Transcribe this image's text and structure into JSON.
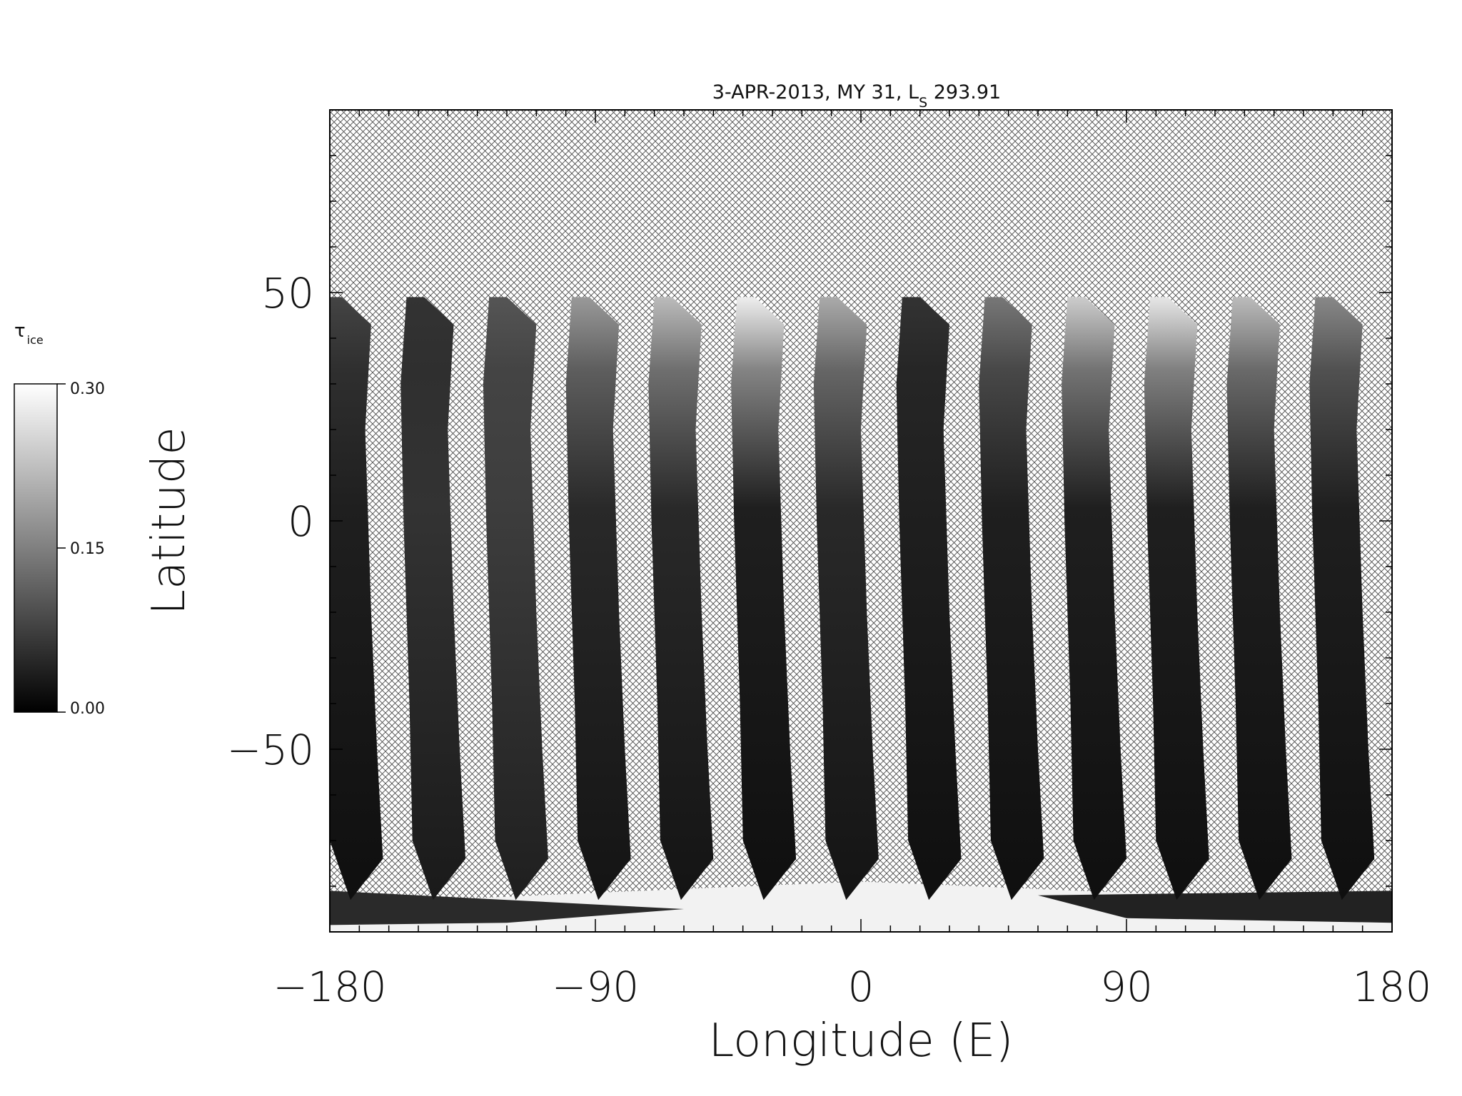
{
  "chart_data": {
    "type": "heatmap",
    "title": "3-APR-2013, MY 31,  L",
    "title_sub": "S",
    "title_suffix": " 293.91",
    "xlabel": "Longitude (E)",
    "ylabel": "Latitude",
    "xlim": [
      -180,
      180
    ],
    "ylim": [
      -90,
      90
    ],
    "xticks": [
      -180,
      -90,
      0,
      90,
      180
    ],
    "yticks": [
      -50,
      0,
      50
    ],
    "colorbar": {
      "label": "τ",
      "label_sub": "ice",
      "range": [
        0.0,
        0.3
      ],
      "ticks": [
        "0.00",
        "0.15",
        "0.30"
      ],
      "colormap": "grayscale",
      "low_color": "#000000",
      "high_color": "#ffffff"
    },
    "no_data_pattern": "crosshatch",
    "swath_count": 13,
    "swaths": [
      {
        "lon_top": -176,
        "mean_tau": 0.03,
        "top_tau": 0.08
      },
      {
        "lon_top": -148,
        "mean_tau": 0.05,
        "top_tau": 0.06
      },
      {
        "lon_top": -120,
        "mean_tau": 0.06,
        "top_tau": 0.1
      },
      {
        "lon_top": -92,
        "mean_tau": 0.04,
        "top_tau": 0.18
      },
      {
        "lon_top": -64,
        "mean_tau": 0.04,
        "top_tau": 0.22
      },
      {
        "lon_top": -36,
        "mean_tau": 0.03,
        "top_tau": 0.28
      },
      {
        "lon_top": -8,
        "mean_tau": 0.04,
        "top_tau": 0.2
      },
      {
        "lon_top": 20,
        "mean_tau": 0.03,
        "top_tau": 0.06
      },
      {
        "lon_top": 48,
        "mean_tau": 0.03,
        "top_tau": 0.14
      },
      {
        "lon_top": 76,
        "mean_tau": 0.03,
        "top_tau": 0.24
      },
      {
        "lon_top": 104,
        "mean_tau": 0.03,
        "top_tau": 0.27
      },
      {
        "lon_top": 132,
        "mean_tau": 0.03,
        "top_tau": 0.22
      },
      {
        "lon_top": 160,
        "mean_tau": 0.03,
        "top_tau": 0.16
      }
    ]
  }
}
